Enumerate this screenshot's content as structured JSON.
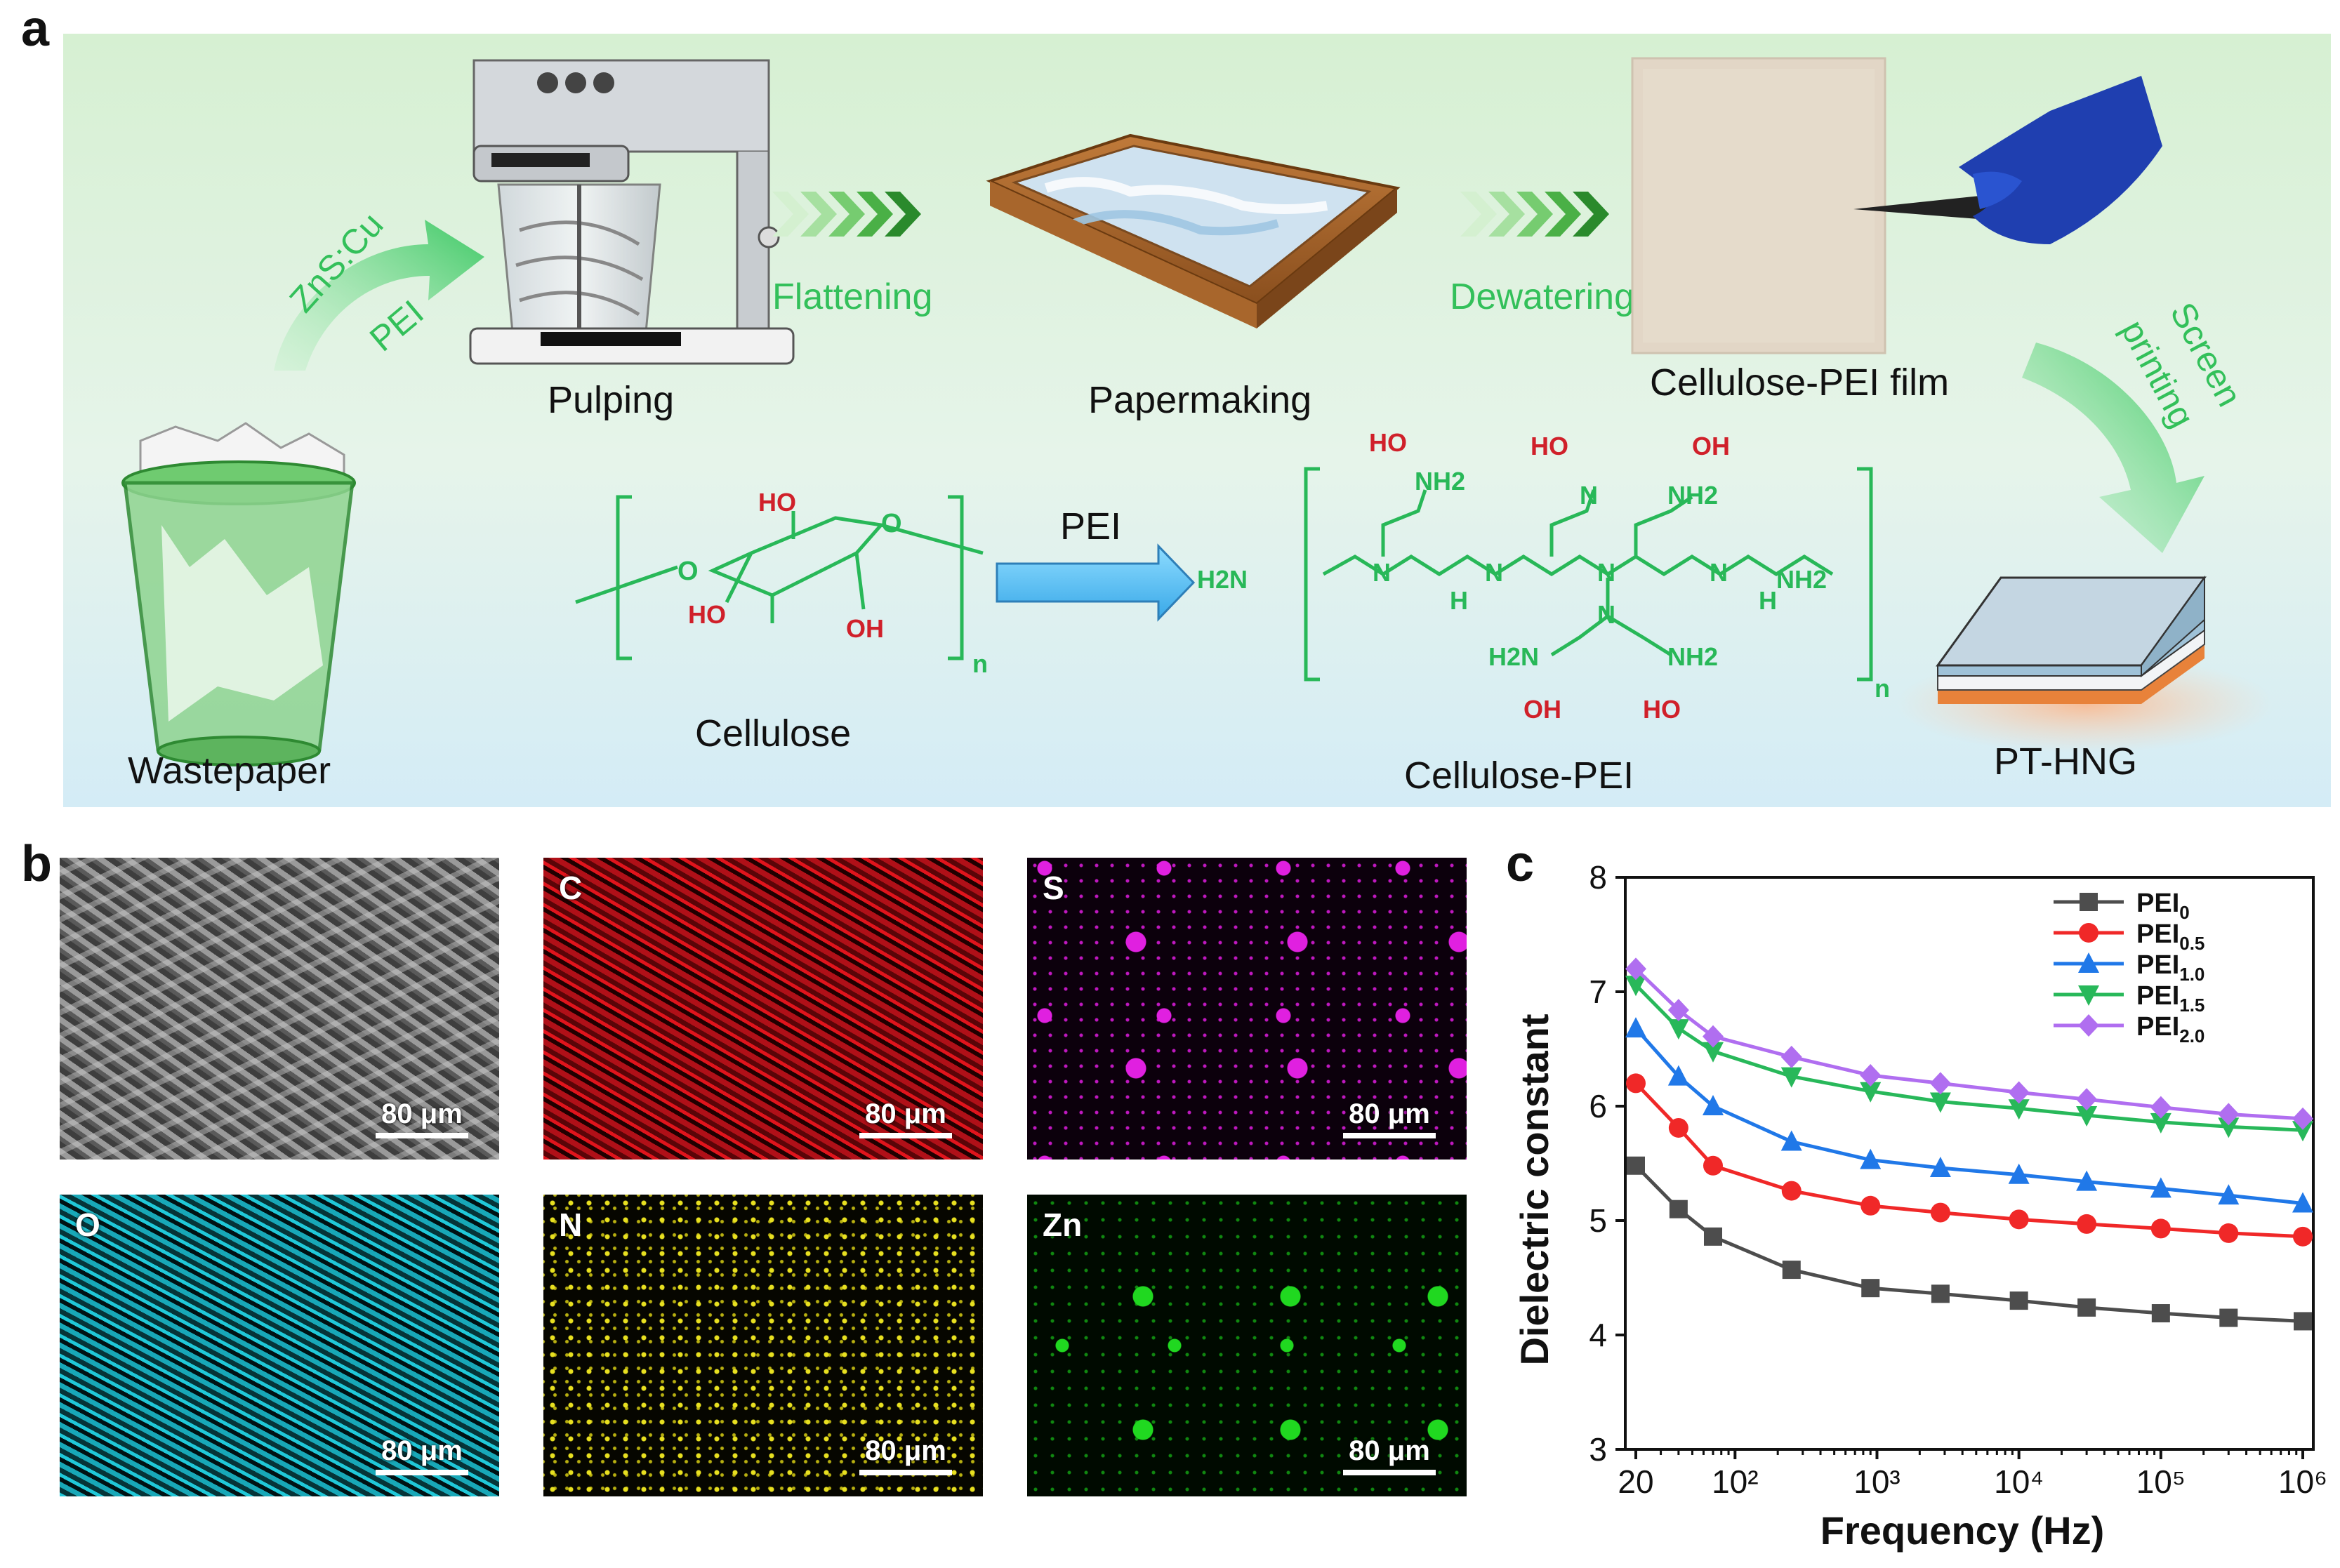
{
  "panel_labels": {
    "a": "a",
    "b": "b",
    "c": "c"
  },
  "process": {
    "additives_1": "ZnS:Cu",
    "additives_2": "PEI",
    "step_pulping": "Pulping",
    "arrow_flattening": "Flattening",
    "step_papermaking": "Papermaking",
    "arrow_dewatering": "Dewatering",
    "step_film": "Cellulose-PEI film",
    "arrow_screen_1": "Screen",
    "arrow_screen_2": "printing",
    "step_wastepaper": "Wastepaper",
    "step_device": "PT-HNG"
  },
  "chemistry": {
    "cellulose_label": "Cellulose",
    "reaction_agent": "PEI",
    "product_label": "Cellulose-PEI",
    "repeat_n": "n",
    "ho": "HO",
    "oh": "OH",
    "o": "O",
    "n": "N",
    "h": "H",
    "nh2": "NH2",
    "h2n": "H2N"
  },
  "eds_maps": [
    {
      "element": "",
      "scale": "80 μm",
      "color": "#9a9a9a"
    },
    {
      "element": "C",
      "scale": "80 μm",
      "color": "#e0141c"
    },
    {
      "element": "S",
      "scale": "80 μm",
      "color": "#e020e0"
    },
    {
      "element": "O",
      "scale": "80 μm",
      "color": "#20c8d8"
    },
    {
      "element": "N",
      "scale": "80 μm",
      "color": "#e8e020"
    },
    {
      "element": "Zn",
      "scale": "80 μm",
      "color": "#20d820"
    }
  ],
  "chart_data": {
    "type": "line",
    "xlabel": "Frequency (Hz)",
    "ylabel": "Dielectric constant",
    "x_scale": "log",
    "xlim": [
      20,
      1000000
    ],
    "ylim": [
      3,
      8
    ],
    "x_ticks": [
      "20",
      "10²",
      "10³",
      "10⁴",
      "10⁵",
      "10⁶"
    ],
    "y_ticks": [
      "3",
      "4",
      "5",
      "6",
      "7",
      "8"
    ],
    "legend_position": "top-right",
    "x": [
      20,
      40,
      70,
      250,
      900,
      2800,
      10000,
      30000,
      100000,
      300000,
      1000000
    ],
    "series": [
      {
        "name": "PEI",
        "sub": "0",
        "color": "#4d4d4d",
        "marker": "square",
        "values": [
          5.48,
          5.1,
          4.86,
          4.57,
          4.41,
          4.36,
          4.3,
          4.24,
          4.19,
          4.15,
          4.12
        ]
      },
      {
        "name": "PEI",
        "sub": "0.5",
        "color": "#f02828",
        "marker": "circle",
        "values": [
          6.2,
          5.81,
          5.48,
          5.26,
          5.13,
          5.07,
          5.01,
          4.97,
          4.93,
          4.89,
          4.86
        ]
      },
      {
        "name": "PEI",
        "sub": "1.0",
        "color": "#2078e8",
        "marker": "triangle-up",
        "values": [
          6.68,
          6.26,
          6.0,
          5.69,
          5.53,
          5.46,
          5.4,
          5.34,
          5.28,
          5.22,
          5.15
        ]
      },
      {
        "name": "PEI",
        "sub": "1.5",
        "color": "#28b85a",
        "marker": "triangle-down",
        "values": [
          7.06,
          6.68,
          6.48,
          6.26,
          6.13,
          6.04,
          5.98,
          5.92,
          5.86,
          5.82,
          5.79
        ]
      },
      {
        "name": "PEI",
        "sub": "2.0",
        "color": "#b06ef0",
        "marker": "diamond",
        "values": [
          7.2,
          6.84,
          6.61,
          6.43,
          6.27,
          6.2,
          6.12,
          6.06,
          5.99,
          5.93,
          5.89
        ]
      }
    ]
  }
}
